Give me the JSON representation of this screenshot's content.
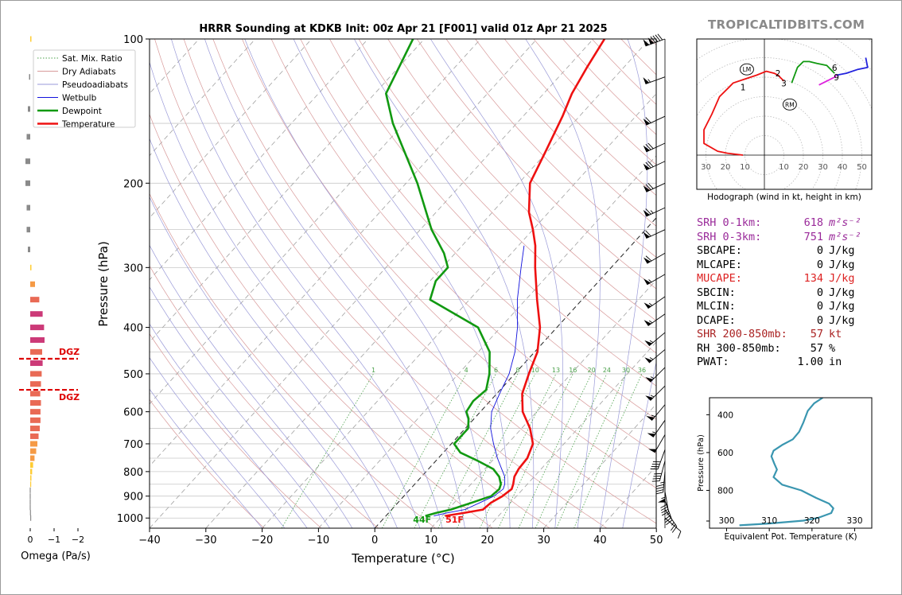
{
  "title": "HRRR Sounding at KDKB Init: 00z Apr 21 [F001] valid 01z Apr 21 2025",
  "brand": "TROPICALTIDBITS.COM",
  "colors": {
    "temperature": "#ee1111",
    "dewpoint": "#119911",
    "wetbulb": "#1111dd",
    "srh": "#9a2a9a",
    "cape_highlight": "#dd2222",
    "shear": "#aa2222",
    "theta_e": "#3a96b0",
    "dgz": "#dd0000"
  },
  "chart_data": [
    {
      "type": "line",
      "name": "skewt",
      "xlabel": "Temperature (°C)",
      "ylabel": "Pressure (hPa)",
      "xlim": [
        -40,
        50
      ],
      "ylim": [
        1050,
        100
      ],
      "y_scale": "log",
      "x_ticks": [
        -40,
        -30,
        -20,
        -10,
        0,
        10,
        20,
        30,
        40,
        50
      ],
      "y_ticks": [
        100,
        200,
        300,
        400,
        500,
        600,
        700,
        800,
        900,
        1000
      ],
      "legend": {
        "position": "top-left",
        "entries": [
          "Sat. Mix. Ratio",
          "Dry Adiabats",
          "Pseudoadiabats",
          "Wetbulb",
          "Dewpoint",
          "Temperature"
        ]
      },
      "mixing_ratio_labels": [
        "1",
        "4",
        "6",
        "8",
        "10",
        "13",
        "16",
        "20",
        "24",
        "30",
        "36"
      ],
      "surface_labels": {
        "dewpoint": "44F",
        "temperature": "51F"
      },
      "series": [
        {
          "name": "Temperature",
          "p": [
            990,
            975,
            960,
            930,
            900,
            870,
            850,
            820,
            790,
            750,
            700,
            650,
            600,
            550,
            500,
            450,
            400,
            350,
            300,
            270,
            250,
            230,
            200,
            170,
            145,
            130,
            115,
            100
          ],
          "t": [
            10.5,
            13.5,
            16.2,
            16.5,
            17.5,
            18,
            17.5,
            16.5,
            16,
            15.8,
            14.5,
            11.5,
            7.5,
            4.5,
            2.5,
            0.5,
            -3,
            -8,
            -13.5,
            -17,
            -20,
            -23.5,
            -28,
            -30.5,
            -33,
            -35,
            -36.5,
            -38
          ]
        },
        {
          "name": "Dewpoint",
          "p": [
            990,
            975,
            960,
            930,
            900,
            870,
            850,
            820,
            790,
            760,
            730,
            700,
            650,
            620,
            600,
            570,
            540,
            500,
            450,
            400,
            350,
            320,
            300,
            280,
            250,
            200,
            150,
            130,
            100
          ],
          "t": [
            7,
            8.5,
            10.5,
            13,
            15.5,
            15.8,
            15.3,
            13.8,
            11.5,
            7.5,
            3,
            0.5,
            0.5,
            -1,
            -2.5,
            -3,
            -2.5,
            -4.5,
            -8,
            -14,
            -27,
            -29,
            -29,
            -32,
            -38,
            -48,
            -62,
            -68,
            -72
          ]
        },
        {
          "name": "Wetbulb",
          "p": [
            990,
            975,
            960,
            930,
            900,
            870,
            850,
            820,
            790,
            750,
            700,
            650,
            600,
            550,
            500,
            450,
            400,
            350,
            300,
            270
          ],
          "t": [
            8.5,
            10.5,
            13,
            14.5,
            16,
            16.5,
            16,
            14.8,
            13,
            10.5,
            7.5,
            4.5,
            2,
            0.5,
            -1,
            -3.5,
            -7,
            -11.5,
            -16,
            -19
          ]
        }
      ]
    },
    {
      "type": "bar",
      "name": "omega",
      "xlabel": "Omega (Pa/s)",
      "x_ticks": [
        "0",
        "−1",
        "−2"
      ],
      "dgz_label": "DGZ",
      "dgz_pressures": [
        465,
        540
      ],
      "p": [
        100,
        120,
        140,
        160,
        180,
        200,
        225,
        250,
        275,
        300,
        325,
        350,
        375,
        400,
        425,
        450,
        475,
        500,
        525,
        550,
        575,
        600,
        625,
        650,
        675,
        700,
        725,
        750,
        775,
        800,
        825,
        850,
        875,
        900,
        925,
        950,
        975,
        1000
      ],
      "values": [
        -0.05,
        0.05,
        0.1,
        0.15,
        0.2,
        0.2,
        0.15,
        0.15,
        0.1,
        -0.05,
        -0.2,
        -0.38,
        -0.52,
        -0.58,
        -0.6,
        -0.5,
        -0.52,
        -0.48,
        -0.45,
        -0.42,
        -0.45,
        -0.43,
        -0.43,
        -0.4,
        -0.35,
        -0.3,
        -0.25,
        -0.18,
        -0.12,
        -0.08,
        -0.05,
        -0.03,
        0.02,
        0.02,
        0.02,
        0.02,
        0.01,
        0.0
      ]
    },
    {
      "type": "line",
      "name": "hodograph",
      "xlabel": "Hodograph (wind in kt, height in km)",
      "x_ticks": [
        "30",
        "20",
        "10",
        "10",
        "20",
        "30",
        "40",
        "50"
      ],
      "xlim": [
        -35,
        52
      ],
      "ylim": [
        -12,
        62
      ],
      "height_labels": [
        "1",
        "2",
        "3",
        "6",
        "9"
      ],
      "storm_motion_labels": [
        "LM",
        "RM"
      ],
      "storm_motion": {
        "LM": [
          -9,
          44
        ],
        "RM": [
          13,
          26
        ]
      },
      "segments": [
        {
          "name": "0-3km",
          "color": "#ee1111",
          "u": [
            -11,
            -19,
            -24,
            -31,
            -31,
            -27,
            -23,
            -18,
            -16,
            -10,
            -4,
            1,
            5,
            7,
            10
          ],
          "v": [
            0,
            1,
            2,
            6,
            13,
            21,
            30,
            35,
            37,
            39,
            41,
            43,
            42,
            41,
            38
          ]
        },
        {
          "name": "3-6km",
          "color": "#119911",
          "u": [
            14,
            17,
            20,
            23,
            27,
            32,
            36
          ],
          "v": [
            37,
            45,
            48,
            48,
            47,
            46,
            42
          ]
        },
        {
          "name": "6-9km",
          "color": "#dd22dd",
          "u": [
            28,
            32,
            36,
            37
          ],
          "v": [
            36,
            38,
            40,
            41
          ]
        },
        {
          "name": "9-12km",
          "color": "#2222dd",
          "u": [
            37,
            42,
            48,
            53,
            52
          ],
          "v": [
            41,
            42,
            44,
            45,
            50
          ]
        }
      ]
    },
    {
      "type": "line",
      "name": "theta_e",
      "xlabel": "Equivalent Pot. Temperature (K)",
      "ylabel": "Pressure (hPa)",
      "xlim": [
        296,
        334
      ],
      "ylim": [
        1000,
        310
      ],
      "x_ticks": [
        300,
        310,
        320,
        330
      ],
      "y_ticks": [
        400,
        600,
        800
      ],
      "x": [
        303,
        310,
        318,
        321.5,
        324.5,
        325,
        324,
        321,
        317.5,
        313,
        311,
        311.8,
        311.2,
        310.5,
        311,
        313,
        315.5,
        317,
        318,
        319,
        320.5,
        322.5
      ],
      "p": [
        985,
        975,
        960,
        945,
        920,
        895,
        870,
        840,
        800,
        770,
        730,
        690,
        660,
        620,
        590,
        560,
        530,
        490,
        440,
        380,
        340,
        310
      ]
    }
  ],
  "params": [
    {
      "label": "SRH 0-1km:",
      "value": "618",
      "unit": "m²s⁻²",
      "color": "#9a2a9a"
    },
    {
      "label": "SRH 0-3km:",
      "value": "751",
      "unit": "m²s⁻²",
      "color": "#9a2a9a"
    },
    {
      "label": "SBCAPE:",
      "value": "0",
      "unit": "J/kg",
      "color": "#000000"
    },
    {
      "label": "MLCAPE:",
      "value": "0",
      "unit": "J/kg",
      "color": "#000000"
    },
    {
      "label": "MUCAPE:",
      "value": "134",
      "unit": "J/kg",
      "color": "#dd2222"
    },
    {
      "label": "SBCIN:",
      "value": "0",
      "unit": "J/kg",
      "color": "#000000"
    },
    {
      "label": "MLCIN:",
      "value": "0",
      "unit": "J/kg",
      "color": "#000000"
    },
    {
      "label": "DCAPE:",
      "value": "0",
      "unit": "J/kg",
      "color": "#000000"
    },
    {
      "label": "SHR 200-850mb:",
      "value": "57",
      "unit": "kt",
      "color": "#aa2222"
    },
    {
      "label": "RH 300-850mb:",
      "value": "57",
      "unit": "%",
      "color": "#000000"
    },
    {
      "label": "PWAT:",
      "value": "1.00",
      "unit": "in",
      "color": "#000000"
    }
  ],
  "wind_barbs": [
    {
      "p": 100,
      "speed": 140,
      "dir": 250
    },
    {
      "p": 120,
      "speed": 55,
      "dir": 250
    },
    {
      "p": 145,
      "speed": 60,
      "dir": 245
    },
    {
      "p": 165,
      "speed": 70,
      "dir": 245
    },
    {
      "p": 180,
      "speed": 70,
      "dir": 245
    },
    {
      "p": 200,
      "speed": 70,
      "dir": 245
    },
    {
      "p": 225,
      "speed": 65,
      "dir": 245
    },
    {
      "p": 250,
      "speed": 60,
      "dir": 245
    },
    {
      "p": 280,
      "speed": 60,
      "dir": 240
    },
    {
      "p": 310,
      "speed": 55,
      "dir": 240
    },
    {
      "p": 345,
      "speed": 55,
      "dir": 235
    },
    {
      "p": 375,
      "speed": 55,
      "dir": 235
    },
    {
      "p": 410,
      "speed": 55,
      "dir": 230
    },
    {
      "p": 445,
      "speed": 55,
      "dir": 230
    },
    {
      "p": 485,
      "speed": 55,
      "dir": 225
    },
    {
      "p": 530,
      "speed": 55,
      "dir": 225
    },
    {
      "p": 580,
      "speed": 55,
      "dir": 220
    },
    {
      "p": 625,
      "speed": 55,
      "dir": 215
    },
    {
      "p": 670,
      "speed": 50,
      "dir": 210
    },
    {
      "p": 720,
      "speed": 40,
      "dir": 200
    },
    {
      "p": 760,
      "speed": 40,
      "dir": 195
    },
    {
      "p": 800,
      "speed": 45,
      "dir": 185
    },
    {
      "p": 840,
      "speed": 55,
      "dir": 180
    },
    {
      "p": 880,
      "speed": 40,
      "dir": 170
    },
    {
      "p": 920,
      "speed": 35,
      "dir": 160
    },
    {
      "p": 960,
      "speed": 25,
      "dir": 145
    },
    {
      "p": 1000,
      "speed": 10,
      "dir": 130
    }
  ]
}
